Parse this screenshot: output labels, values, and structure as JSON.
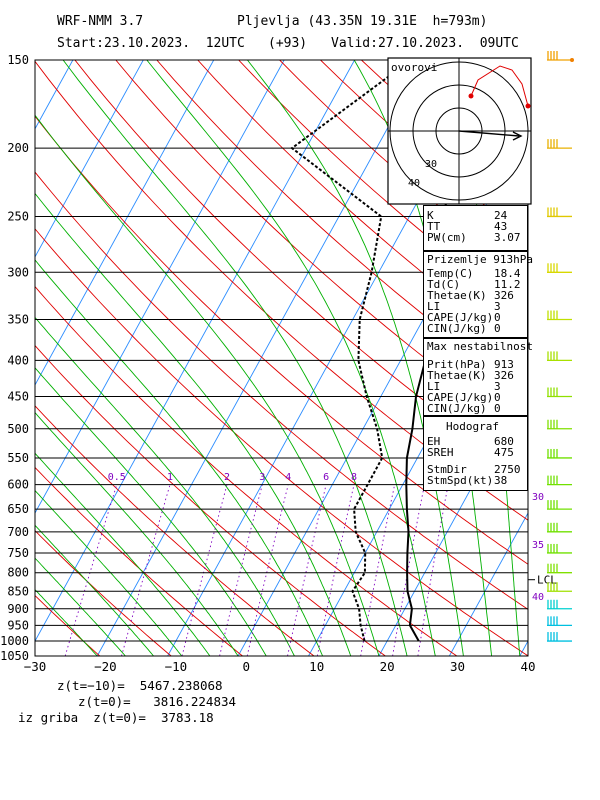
{
  "header": {
    "model": "WRF-NMM 3.7",
    "station": "Pljevlja (43.35N 19.31E  h=793m)",
    "start": "Start:23.10.2023.  12UTC",
    "lead": "(+93)",
    "valid": "Valid:27.10.2023.  09UTC"
  },
  "chart_data": {
    "type": "line",
    "title": "",
    "xlabel": "",
    "ylabel": "",
    "xlim": [
      -30,
      40
    ],
    "ylim_hpa": [
      1050,
      150
    ],
    "x_ticks": [
      "−30",
      "−20",
      "−10",
      "0",
      "10",
      "20",
      "30",
      "40"
    ],
    "y_ticks": [
      "150",
      "200",
      "250",
      "300",
      "350",
      "400",
      "450",
      "500",
      "550",
      "600",
      "650",
      "700",
      "750",
      "800",
      "850",
      "900",
      "950",
      "1000",
      "1050"
    ],
    "mixing_ratio_labels": [
      "0.5",
      "1",
      "2",
      "3",
      "4",
      "6",
      "8"
    ],
    "hodograph_circle_labels": [
      "40",
      "30"
    ],
    "right_speed_labels": [
      "30",
      "35",
      "40"
    ],
    "lcl_label": "LCL",
    "hodograph_title": "ovorovi",
    "series": [
      {
        "name": "temperature",
        "color": "#000000",
        "points": [
          [
            24.5,
            1000
          ],
          [
            22,
            950
          ],
          [
            21,
            900
          ],
          [
            19,
            850
          ],
          [
            17.5,
            800
          ],
          [
            16,
            750
          ],
          [
            14.5,
            700
          ],
          [
            12.5,
            650
          ],
          [
            10.5,
            600
          ],
          [
            8.5,
            550
          ],
          [
            7,
            500
          ],
          [
            5,
            450
          ],
          [
            3.5,
            400
          ],
          [
            1,
            350
          ],
          [
            -2.5,
            300
          ],
          [
            -5.5,
            250
          ],
          [
            -7,
            200
          ],
          [
            -4,
            150
          ]
        ]
      },
      {
        "name": "dewpoint",
        "color": "#000000",
        "points": [
          [
            16.8,
            1000
          ],
          [
            15,
            950
          ],
          [
            13.5,
            900
          ],
          [
            11.2,
            850
          ],
          [
            11.5,
            800
          ],
          [
            10,
            750
          ],
          [
            7,
            700
          ],
          [
            5,
            650
          ],
          [
            5,
            600
          ],
          [
            5,
            550
          ],
          [
            2,
            500
          ],
          [
            -2,
            450
          ],
          [
            -6,
            400
          ],
          [
            -9,
            350
          ],
          [
            -11,
            300
          ],
          [
            -14,
            250
          ],
          [
            -32,
            200
          ],
          [
            -22,
            150
          ]
        ]
      }
    ]
  },
  "indices": {
    "rows": [
      {
        "label": "K",
        "value": "24"
      },
      {
        "label": "TT",
        "value": "43"
      },
      {
        "label": "PW(cm)",
        "value": "3.07"
      }
    ]
  },
  "surface": {
    "title": "Prizemlje 913hPa",
    "rows": [
      {
        "label": "Temp(C)",
        "value": "18.4"
      },
      {
        "label": "Td(C)",
        "value": "11.2"
      },
      {
        "label": "Thetae(K)",
        "value": "326"
      },
      {
        "label": "LI",
        "value": "3"
      },
      {
        "label": "CAPE(J/kg)",
        "value": "0"
      },
      {
        "label": "CIN(J/kg)",
        "value": "0"
      }
    ]
  },
  "max_instability": {
    "title": "Max nestabilnost",
    "rows": [
      {
        "label": "Prit(hPa)",
        "value": "913"
      },
      {
        "label": "Thetae(K)",
        "value": "326"
      },
      {
        "label": "LI",
        "value": "3"
      },
      {
        "label": "CAPE(J/kg)",
        "value": "0"
      },
      {
        "label": "CIN(J/kg)",
        "value": "0"
      }
    ]
  },
  "hodograph_box": {
    "title": "Hodograf",
    "rows": [
      {
        "label": "EH",
        "value": "680"
      },
      {
        "label": "SREH",
        "value": "475"
      },
      {
        "label": "StmDir",
        "value": "2750"
      },
      {
        "label": "StmSpd(kt)",
        "value": "38"
      }
    ]
  },
  "footer": {
    "z_m10": "z(t=−10)=  5467.238068",
    "z_0": "z(t=0)=   3816.224834",
    "z_griba": "iz griba  z(t=0)=  3783.18"
  },
  "colors": {
    "isotherm": "#2a8cff",
    "dry_adiabat": "#e00000",
    "moist_adiabat": "#00b000",
    "mixing_ratio": "#8000c0",
    "barb_low": "#00d0d0",
    "barb_high": "#f0a000"
  }
}
